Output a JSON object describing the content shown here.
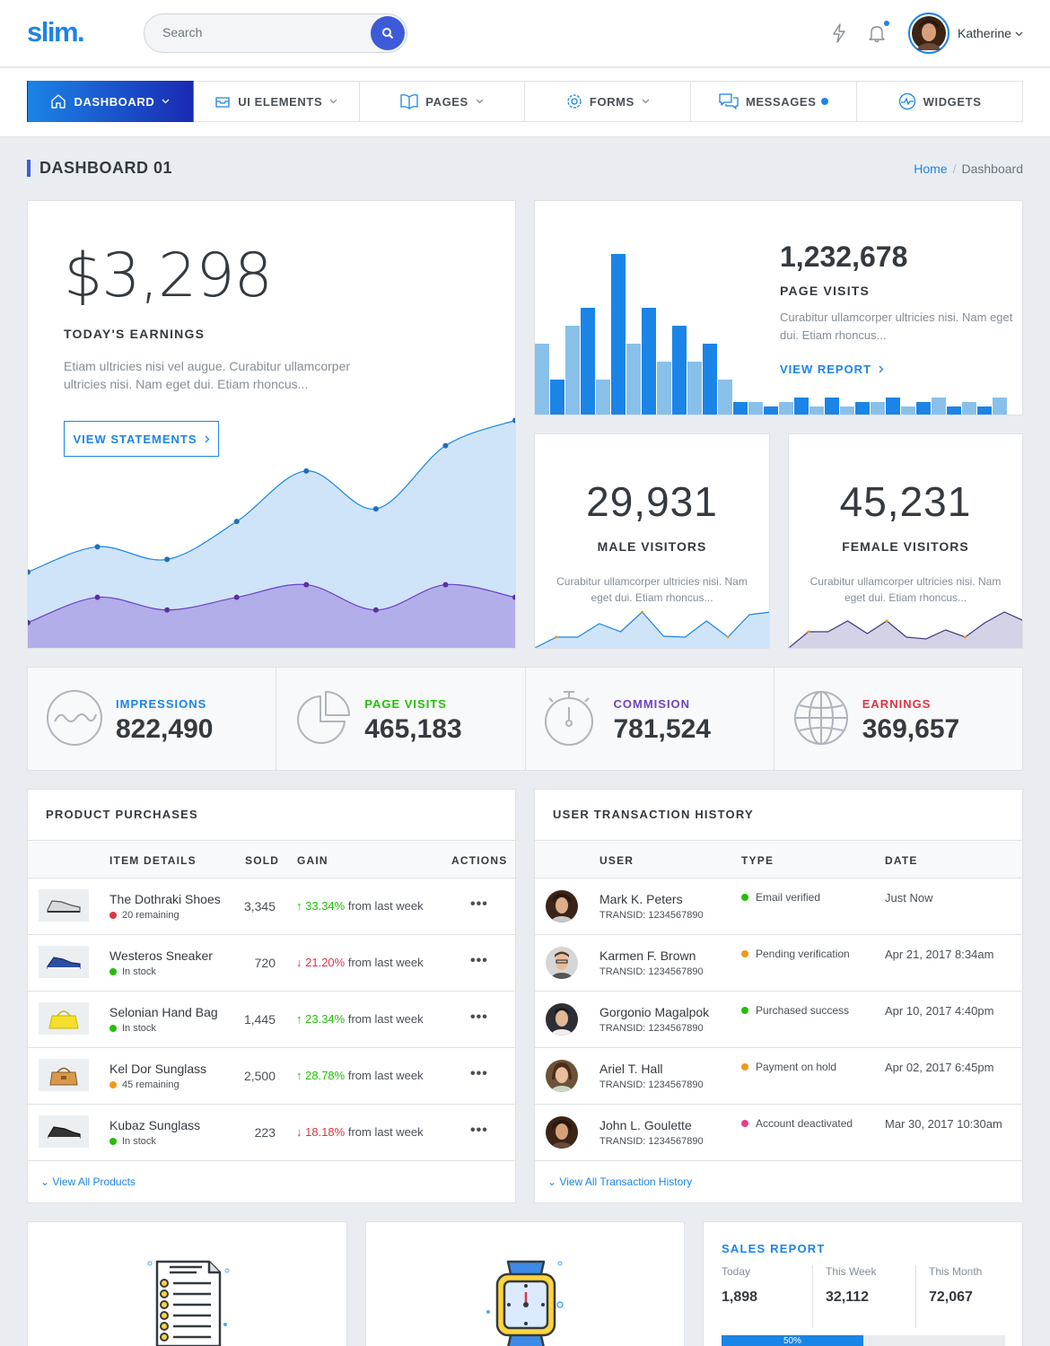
{
  "header": {
    "logo": "slim.",
    "search_placeholder": "Search",
    "username": "Katherine"
  },
  "nav": {
    "items": [
      {
        "label": "DASHBOARD",
        "icon": "home-icon"
      },
      {
        "label": "UI ELEMENTS",
        "icon": "box-icon"
      },
      {
        "label": "PAGES",
        "icon": "book-icon"
      },
      {
        "label": "FORMS",
        "icon": "gear-icon"
      },
      {
        "label": "MESSAGES",
        "icon": "chat-icon"
      },
      {
        "label": "WIDGETS",
        "icon": "pulse-icon"
      }
    ]
  },
  "page": {
    "title": "DASHBOARD 01",
    "breadcrumb": [
      "Home",
      "Dashboard"
    ]
  },
  "earnings": {
    "amount": "$3,298",
    "label": "TODAY'S EARNINGS",
    "desc": "Etiam ultricies nisi vel augue. Curabitur ullamcorper ultricies nisi. Nam eget dui. Etiam rhoncus...",
    "button": "VIEW STATEMENTS",
    "chart_data": {
      "type": "area",
      "x": [
        0,
        1,
        2,
        3,
        4,
        5,
        6,
        7
      ],
      "series": [
        {
          "values": [
            30,
            40,
            35,
            50,
            70,
            55,
            80,
            90
          ]
        },
        {
          "values": [
            10,
            20,
            15,
            20,
            25,
            15,
            25,
            20
          ]
        }
      ],
      "ylim": [
        0,
        120
      ],
      "colors": [
        "#cfe4f9",
        "#b1aeea"
      ]
    }
  },
  "page_visits": {
    "value": "1,232,678",
    "label": "PAGE VISITS",
    "desc": "Curabitur ullamcorper ultricies nisi. Nam eget dui. Etiam rhoncus...",
    "link": "VIEW REPORT",
    "chart_data": {
      "type": "bar",
      "values": [
        8,
        4,
        10,
        12,
        4,
        18,
        8,
        12,
        6,
        10,
        6,
        8,
        4,
        1.5,
        1.5,
        1,
        1.5,
        2,
        1,
        2,
        1,
        1.5,
        1.5,
        2,
        1,
        1.5,
        2,
        1,
        1.5,
        1,
        2
      ],
      "colors": [
        "#89c0ea",
        "#1b84e7"
      ]
    }
  },
  "male_visitors": {
    "value": "29,931",
    "label": "MALE VISITORS",
    "desc": "Curabitur ullamcorper ultricies nisi. Nam eget dui. Etiam rhoncus...",
    "chart_data": {
      "type": "line",
      "values": [
        0,
        12,
        12,
        27,
        18,
        40,
        13,
        12,
        30,
        12,
        37,
        40
      ]
    }
  },
  "female_visitors": {
    "value": "45,231",
    "label": "FEMALE VISITORS",
    "desc": "Curabitur ullamcorper ultricies nisi. Nam eget dui. Etiam rhoncus...",
    "chart_data": {
      "type": "line",
      "values": [
        0,
        18,
        18,
        30,
        16,
        30,
        12,
        10,
        20,
        12,
        28,
        40,
        30
      ]
    }
  },
  "stats": [
    {
      "label": "IMPRESSIONS",
      "value": "822,490",
      "color": "#1b84e7",
      "icon": "wave-icon"
    },
    {
      "label": "PAGE VISITS",
      "value": "465,183",
      "color": "#23bf08",
      "icon": "pie-icon"
    },
    {
      "label": "COMMISION",
      "value": "781,524",
      "color": "#6f42c1",
      "icon": "stopwatch-icon"
    },
    {
      "label": "EARNINGS",
      "value": "369,657",
      "color": "#dc3545",
      "icon": "globe-icon"
    }
  ],
  "products": {
    "title": "PRODUCT PURCHASES",
    "columns": [
      "ITEM DETAILS",
      "SOLD",
      "GAIN",
      "ACTIONS"
    ],
    "rows": [
      {
        "name": "The Dothraki Shoes",
        "stock": "20 remaining",
        "stock_color": "#dc3545",
        "sold": "3,345",
        "gain": "33.34%",
        "dir": "up",
        "period": "from last week"
      },
      {
        "name": "Westeros Sneaker",
        "stock": "In stock",
        "stock_color": "#23bf08",
        "sold": "720",
        "gain": "21.20%",
        "dir": "down",
        "period": "from last week"
      },
      {
        "name": "Selonian Hand Bag",
        "stock": "In stock",
        "stock_color": "#23bf08",
        "sold": "1,445",
        "gain": "23.34%",
        "dir": "up",
        "period": "from last week"
      },
      {
        "name": "Kel Dor Sunglass",
        "stock": "45 remaining",
        "stock_color": "#f49917",
        "sold": "2,500",
        "gain": "28.78%",
        "dir": "up",
        "period": "from last week"
      },
      {
        "name": "Kubaz Sunglass",
        "stock": "In stock",
        "stock_color": "#23bf08",
        "sold": "223",
        "gain": "18.18%",
        "dir": "down",
        "period": "from last week"
      }
    ],
    "view_all": "View All Products"
  },
  "transactions": {
    "title": "USER TRANSACTION HISTORY",
    "columns": [
      "USER",
      "TYPE",
      "DATE"
    ],
    "rows": [
      {
        "name": "Mark K. Peters",
        "tid": "TRANSID: 1234567890",
        "type": "Email verified",
        "type_color": "#23bf08",
        "date": "Just Now"
      },
      {
        "name": "Karmen F. Brown",
        "tid": "TRANSID: 1234567890",
        "type": "Pending verification",
        "type_color": "#f49917",
        "date": "Apr 21, 2017 8:34am"
      },
      {
        "name": "Gorgonio Magalpok",
        "tid": "TRANSID: 1234567890",
        "type": "Purchased success",
        "type_color": "#23bf08",
        "date": "Apr 10, 2017 4:40pm"
      },
      {
        "name": "Ariel T. Hall",
        "tid": "TRANSID: 1234567890",
        "type": "Payment on hold",
        "type_color": "#f49917",
        "date": "Apr 02, 2017 6:45pm"
      },
      {
        "name": "John L. Goulette",
        "tid": "TRANSID: 1234567890",
        "type": "Account deactivated",
        "type_color": "#e83e8c",
        "date": "Mar 30, 2017 10:30am"
      }
    ],
    "view_all": "View All Transaction History"
  },
  "sales_report": {
    "title": "SALES REPORT",
    "cols": [
      {
        "label": "Today",
        "value": "1,898"
      },
      {
        "label": "This Week",
        "value": "32,112"
      },
      {
        "label": "This Month",
        "value": "72,067"
      }
    ],
    "progress": 0.5,
    "progress_label": "50%"
  }
}
